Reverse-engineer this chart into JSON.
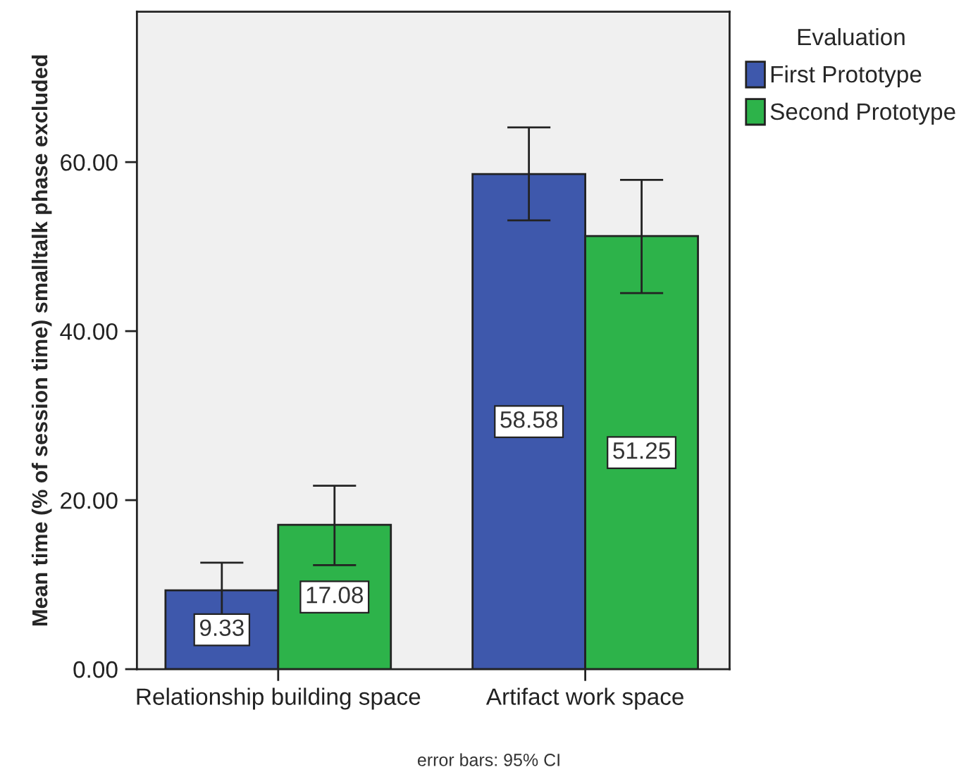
{
  "chart_data": {
    "type": "bar",
    "ylabel": "Mean time (% of session time) smalltalk phase excluded",
    "legend_title": "Evaluation",
    "categories": [
      "Relationship building space",
      "Artifact work space"
    ],
    "series": [
      {
        "name": "First Prototype",
        "color": "#3e58ac",
        "values": [
          9.33,
          58.58
        ],
        "errors": [
          [
            5.8,
            12.6
          ],
          [
            53.1,
            64.1
          ]
        ]
      },
      {
        "name": "Second Prototype",
        "color": "#2db34a",
        "values": [
          17.08,
          51.25
        ],
        "errors": [
          [
            12.3,
            21.7
          ],
          [
            44.5,
            57.9
          ]
        ]
      }
    ],
    "ylim": [
      0,
      77.8
    ],
    "yticks": [
      {
        "value": 0,
        "label": "0.00"
      },
      {
        "value": 20,
        "label": "20.00"
      },
      {
        "value": 40,
        "label": "40.00"
      },
      {
        "value": 60,
        "label": "60.00"
      }
    ],
    "data_labels": true,
    "grid": false,
    "legend": "top right",
    "annotations": [
      "error bars: 95% CI"
    ]
  }
}
